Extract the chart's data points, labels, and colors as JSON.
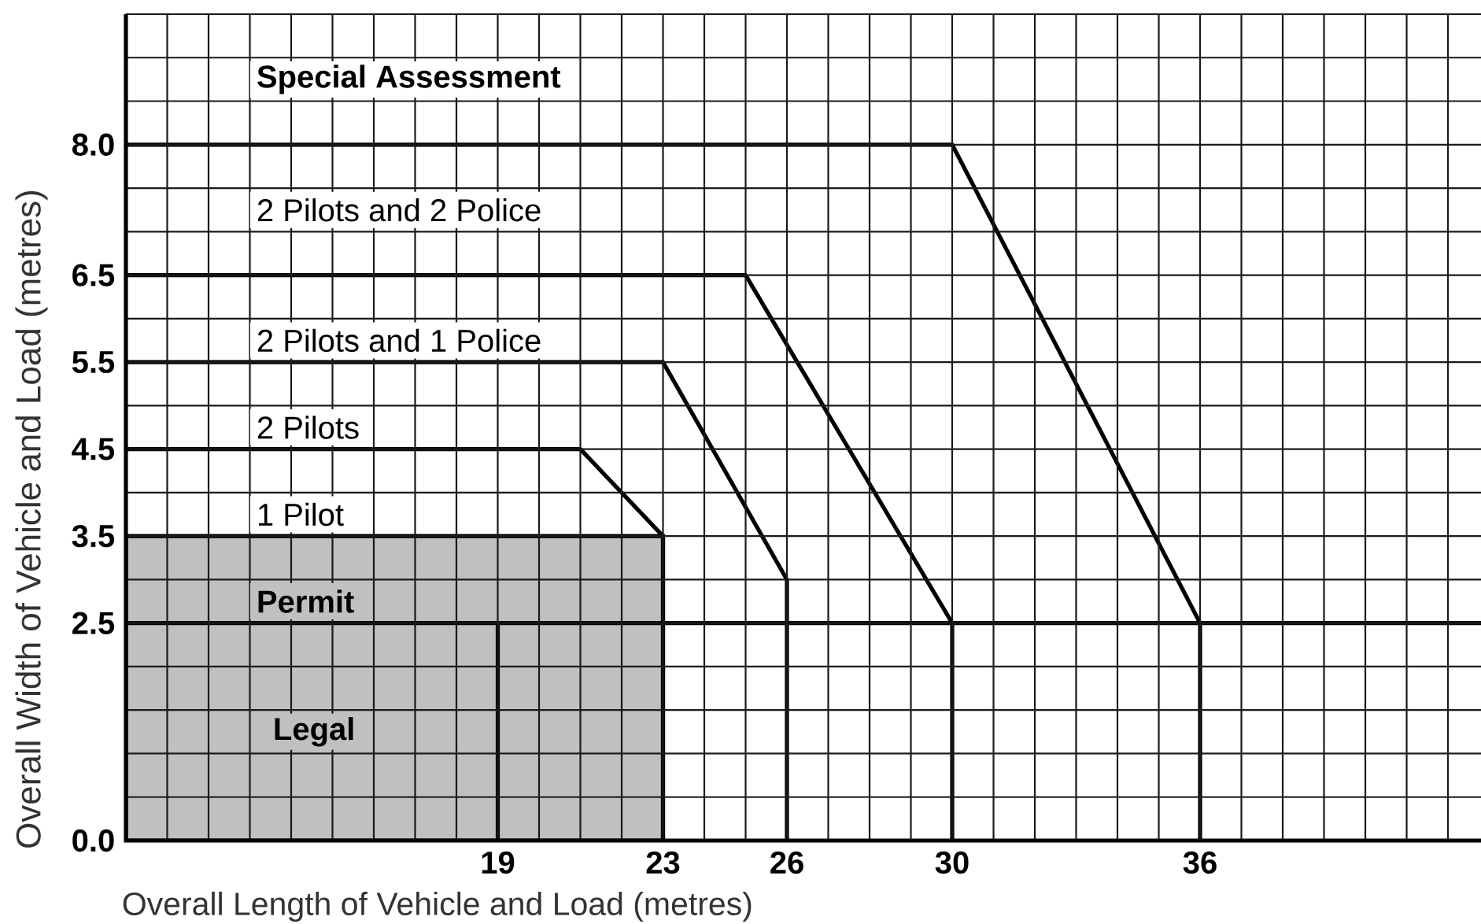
{
  "chart_data": {
    "type": "line",
    "xlabel": "Overall Length of Vehicle and Load (metres)",
    "ylabel": "Overall Width of Vehicle and Load (metres)",
    "xlim": [
      10,
      42.8
    ],
    "ylim": [
      0,
      9.5
    ],
    "xticks": [
      {
        "value": 10,
        "label": null
      },
      {
        "value": 11,
        "label": null
      },
      {
        "value": 12,
        "label": null
      },
      {
        "value": 13,
        "label": null
      },
      {
        "value": 14,
        "label": null
      },
      {
        "value": 15,
        "label": null
      },
      {
        "value": 16,
        "label": null
      },
      {
        "value": 17,
        "label": null
      },
      {
        "value": 18,
        "label": null
      },
      19,
      {
        "value": 20,
        "label": null
      },
      {
        "value": 21,
        "label": null
      },
      {
        "value": 22,
        "label": null
      },
      23,
      {
        "value": 24,
        "label": null
      },
      {
        "value": 25,
        "label": null
      },
      26,
      {
        "value": 27,
        "label": null
      },
      {
        "value": 28,
        "label": null
      },
      {
        "value": 29,
        "label": null
      },
      30,
      {
        "value": 31,
        "label": null
      },
      {
        "value": 32,
        "label": null
      },
      {
        "value": 33,
        "label": null
      },
      {
        "value": 34,
        "label": null
      },
      {
        "value": 35,
        "label": null
      },
      36,
      {
        "value": 37,
        "label": null
      },
      {
        "value": 38,
        "label": null
      },
      {
        "value": 39,
        "label": null
      },
      {
        "value": 40,
        "label": null
      },
      {
        "value": 41,
        "label": null
      },
      {
        "value": 42,
        "label": null
      }
    ],
    "yticks": [
      {
        "value": 0,
        "label": "0.0"
      },
      {
        "value": 0.5,
        "label": null
      },
      {
        "value": 1,
        "label": null
      },
      {
        "value": 1.5,
        "label": null
      },
      {
        "value": 2,
        "label": null
      },
      2.5,
      {
        "value": 3,
        "label": null
      },
      3.5,
      {
        "value": 4,
        "label": null
      },
      4.5,
      {
        "value": 5,
        "label": null
      },
      5.5,
      {
        "value": 6,
        "label": null
      },
      6.5,
      {
        "value": 7,
        "label": null
      },
      {
        "value": 7.5,
        "label": null
      },
      {
        "value": 8,
        "label": "8.0"
      },
      {
        "value": 8.5,
        "label": null
      },
      {
        "value": 9,
        "label": null
      },
      {
        "value": 9.5,
        "label": null
      }
    ],
    "grid": true,
    "series": [
      {
        "type": "area",
        "color": "#c0c0c0",
        "x": [
          10,
          23
        ],
        "values": [
          3.5,
          3.5
        ]
      },
      {
        "color": "#000000",
        "x": [
          10,
          30,
          36
        ],
        "values": [
          8.0,
          8.0,
          2.5
        ]
      },
      {
        "color": "#000000",
        "x": [
          10,
          25,
          30,
          30
        ],
        "values": [
          6.5,
          6.5,
          2.5,
          0
        ]
      },
      {
        "color": "#000000",
        "x": [
          10,
          23,
          26,
          26
        ],
        "values": [
          5.5,
          5.5,
          3.0,
          0
        ]
      },
      {
        "color": "#000000",
        "x": [
          10,
          21,
          23,
          23
        ],
        "values": [
          4.5,
          4.5,
          3.5,
          0
        ]
      },
      {
        "color": "#000000",
        "x": [
          10,
          42.8
        ],
        "values": [
          2.5,
          2.5
        ]
      },
      {
        "color": "#000000",
        "x": [
          19,
          19
        ],
        "values": [
          2.5,
          0
        ]
      },
      {
        "color": "#000000",
        "x": [
          36,
          36
        ],
        "values": [
          2.5,
          0
        ]
      }
    ],
    "annotations": [
      "Special Assessment",
      "2 Pilots and 2 Police",
      "2 Pilots and 1 Police",
      "2 Pilots",
      "1 Pilot",
      "Permit",
      "Legal"
    ]
  }
}
